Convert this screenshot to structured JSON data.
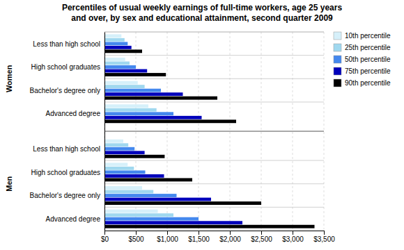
{
  "chart_data": {
    "type": "bar",
    "orientation": "horizontal",
    "title": "Percentiles of usual weekly earnings of full-time workers, age 25 years\nand over, by sex and educational attainment, second quarter 2009",
    "categories": [
      "Less than high school",
      "High school graduates",
      "Bachelor's degree only",
      "Advanced degree",
      "Less than high school",
      "High school graduates",
      "Bachelor's degree only",
      "Advanced degree"
    ],
    "category_groups": [
      "Women",
      "Women",
      "Women",
      "Women",
      "Men",
      "Men",
      "Men",
      "Men"
    ],
    "series": [
      {
        "name": "10th percentile",
        "color": "#d6f0fa",
        "values": [
          270,
          330,
          530,
          700,
          300,
          370,
          600,
          850
        ]
      },
      {
        "name": "25th percentile",
        "color": "#a0d8ef",
        "values": [
          320,
          400,
          640,
          830,
          380,
          470,
          780,
          1100
        ]
      },
      {
        "name": "50th percentile",
        "color": "#4488ee",
        "values": [
          370,
          500,
          900,
          1100,
          480,
          650,
          1150,
          1500
        ]
      },
      {
        "name": "75th percentile",
        "color": "#0000bb",
        "values": [
          430,
          680,
          1250,
          1550,
          640,
          950,
          1700,
          2200
        ]
      },
      {
        "name": "90th percentile",
        "color": "#000000",
        "values": [
          600,
          980,
          1800,
          2100,
          960,
          1400,
          2500,
          3350
        ]
      }
    ],
    "xlim": [
      0,
      3500
    ],
    "xticks": [
      {
        "value": 0,
        "label": "$0"
      },
      {
        "value": 500,
        "label": "$500"
      },
      {
        "value": 1000,
        "label": "$1,000"
      },
      {
        "value": 1500,
        "label": "$1,500"
      },
      {
        "value": 2000,
        "label": "$2,000"
      },
      {
        "value": 2500,
        "label": "$2,500"
      },
      {
        "value": 3000,
        "label": "$3,000"
      },
      {
        "value": 3500,
        "label": "$3,500"
      }
    ],
    "grid": true,
    "legend": "right"
  }
}
